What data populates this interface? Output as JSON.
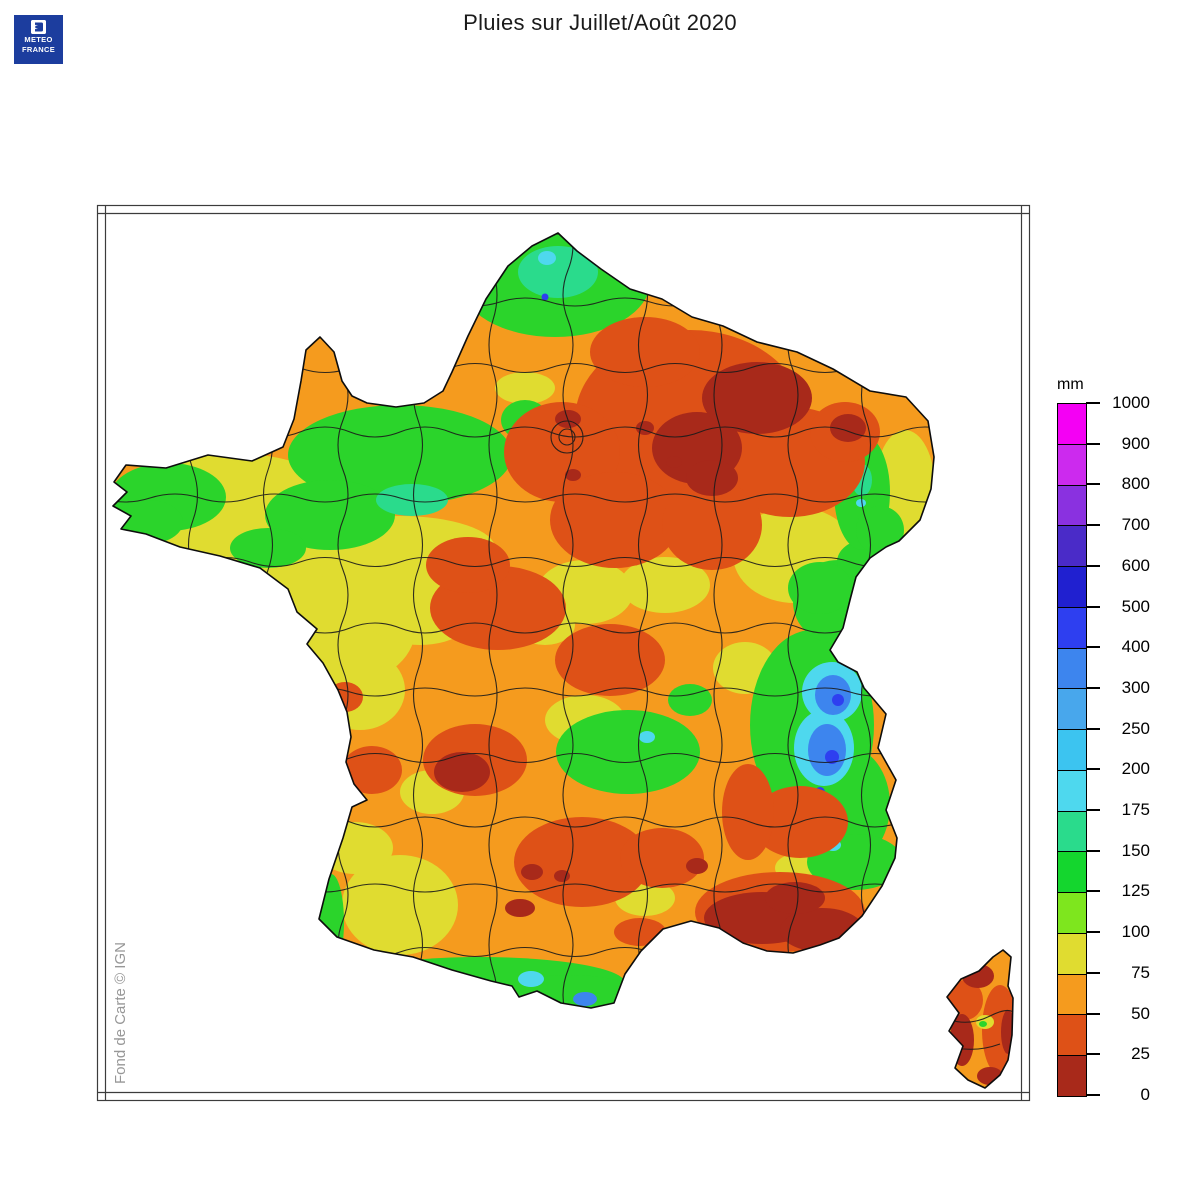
{
  "header": {
    "title": "Pluies sur Juillet/Août 2020"
  },
  "logo": {
    "line1": "METEO",
    "line2": "FRANCE",
    "bg_color": "#1c3d9e"
  },
  "map": {
    "attribution": "Fond de Carte © IGN"
  },
  "legend": {
    "unit": "mm",
    "levels": [
      0,
      25,
      50,
      75,
      100,
      125,
      150,
      175,
      200,
      250,
      300,
      400,
      500,
      600,
      700,
      800,
      900,
      1000
    ],
    "segment_colors_bottom_to_top": [
      "#a8291a",
      "#de5117",
      "#f59b1e",
      "#e0dc30",
      "#7ee61e",
      "#14d62e",
      "#2adb8c",
      "#4ed8ee",
      "#3cc4f0",
      "#48a7ec",
      "#3d85ee",
      "#2e3ff0",
      "#2020d0",
      "#4a2bc8",
      "#8a31e0",
      "#cc2aee",
      "#f400f4"
    ]
  }
}
